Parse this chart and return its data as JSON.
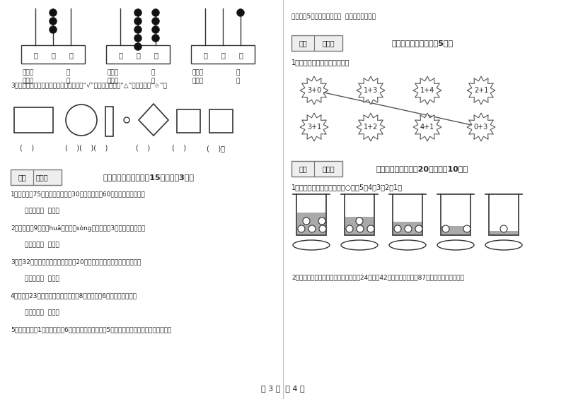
{
  "page_bg": "#ffffff",
  "font_color": "#222222",
  "line_color": "#333333",
  "abacus_data": [
    {
      "tens": 3,
      "ones": 0
    },
    {
      "tens": 5,
      "ones": 4
    },
    {
      "tens": 0,
      "ones": 1
    }
  ],
  "top_row_expressions": [
    "3+0",
    "1+3",
    "1+4",
    "2+1"
  ],
  "bottom_row_expressions": [
    "3+1",
    "1+2",
    "4+1",
    "0+3"
  ],
  "footer_text": "第 3 页  共 4 页",
  "cup_water_levels": [
    5,
    4,
    3,
    2,
    1
  ]
}
